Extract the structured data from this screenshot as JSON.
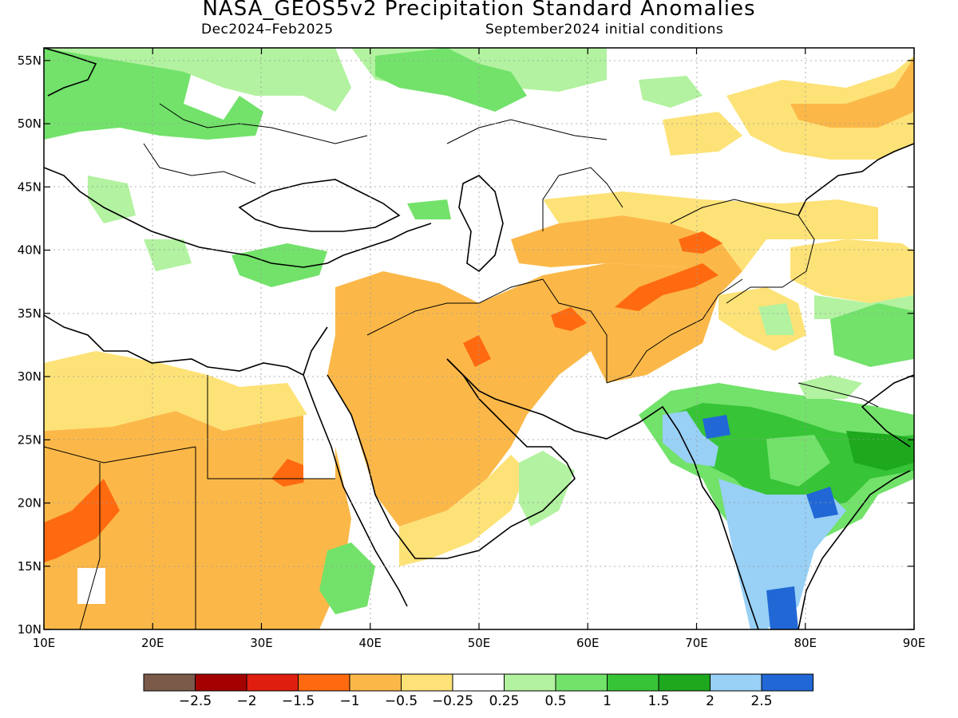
{
  "header": {
    "title": "NASA_GEOS5v2 Precipitation Standard Anomalies",
    "period": "Dec2024–Feb2025",
    "init": "September2024 initial conditions"
  },
  "map": {
    "lon_range": [
      10,
      90
    ],
    "lat_range": [
      10,
      56
    ],
    "lon_ticks": [
      "10E",
      "20E",
      "30E",
      "40E",
      "50E",
      "60E",
      "70E",
      "80E",
      "90E"
    ],
    "lat_ticks": [
      "10N",
      "15N",
      "20N",
      "25N",
      "30N",
      "35N",
      "40N",
      "45N",
      "50N",
      "55N"
    ],
    "grid": true
  },
  "colorbar": {
    "labels": [
      "−2.5",
      "−2",
      "−1.5",
      "−1",
      "−0.5",
      "−0.25",
      "0.25",
      "0.5",
      "1",
      "1.5",
      "2",
      "2.5"
    ],
    "colors": [
      "#7b5a4a",
      "#a50000",
      "#e01e10",
      "#ff6a10",
      "#fbb848",
      "#fde277",
      "#ffffff",
      "#b2f2a0",
      "#72e26a",
      "#37c437",
      "#1ea81e",
      "#98d0f6",
      "#2168d6"
    ]
  },
  "palette": {
    "land": "#ffffff",
    "ocean": "#ffffff",
    "border": "#000000"
  }
}
